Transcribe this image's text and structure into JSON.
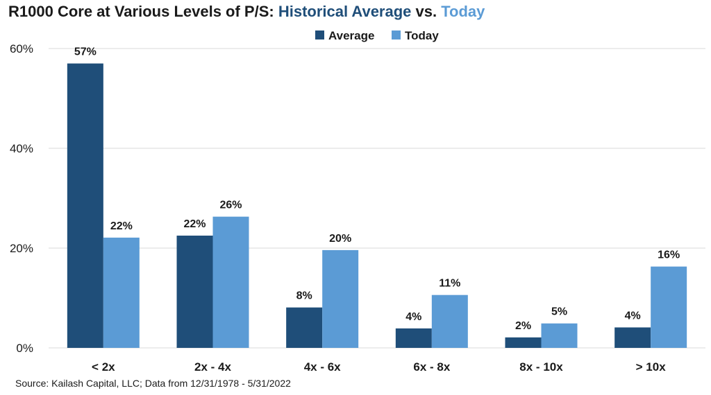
{
  "header": {
    "title_main": "R1000 Core at Various Levels of P/S: ",
    "title_avg": "Historical Average",
    "title_sep": " vs. ",
    "title_today": "Today"
  },
  "footer": {
    "source": "Source: Kailash Capital, LLC; Data from 12/31/1978 - 5/31/2022"
  },
  "colors": {
    "average": "#1f4e79",
    "today": "#5b9bd5",
    "grid": "#d9d9d9"
  },
  "chart_data": {
    "type": "bar",
    "title": "R1000 Core at Various Levels of P/S: Historical Average vs. Today",
    "categories": [
      "< 2x",
      "2x - 4x",
      "4x - 6x",
      "6x - 8x",
      "8x - 10x",
      "> 10x"
    ],
    "series": [
      {
        "name": "Average",
        "values": [
          57,
          22.5,
          8.1,
          3.9,
          2.1,
          4.1
        ],
        "labels": [
          "57%",
          "22%",
          "8%",
          "4%",
          "2%",
          "4%"
        ]
      },
      {
        "name": "Today",
        "values": [
          22.1,
          26.3,
          19.6,
          10.6,
          4.9,
          16.3
        ],
        "labels": [
          "22%",
          "26%",
          "20%",
          "11%",
          "5%",
          "16%"
        ]
      }
    ],
    "yticks": [
      "0%",
      "20%",
      "40%",
      "60%"
    ],
    "ytick_values": [
      0,
      20,
      40,
      60
    ],
    "ylim": [
      0,
      60
    ],
    "legend_position": "top-center",
    "grid": true
  }
}
